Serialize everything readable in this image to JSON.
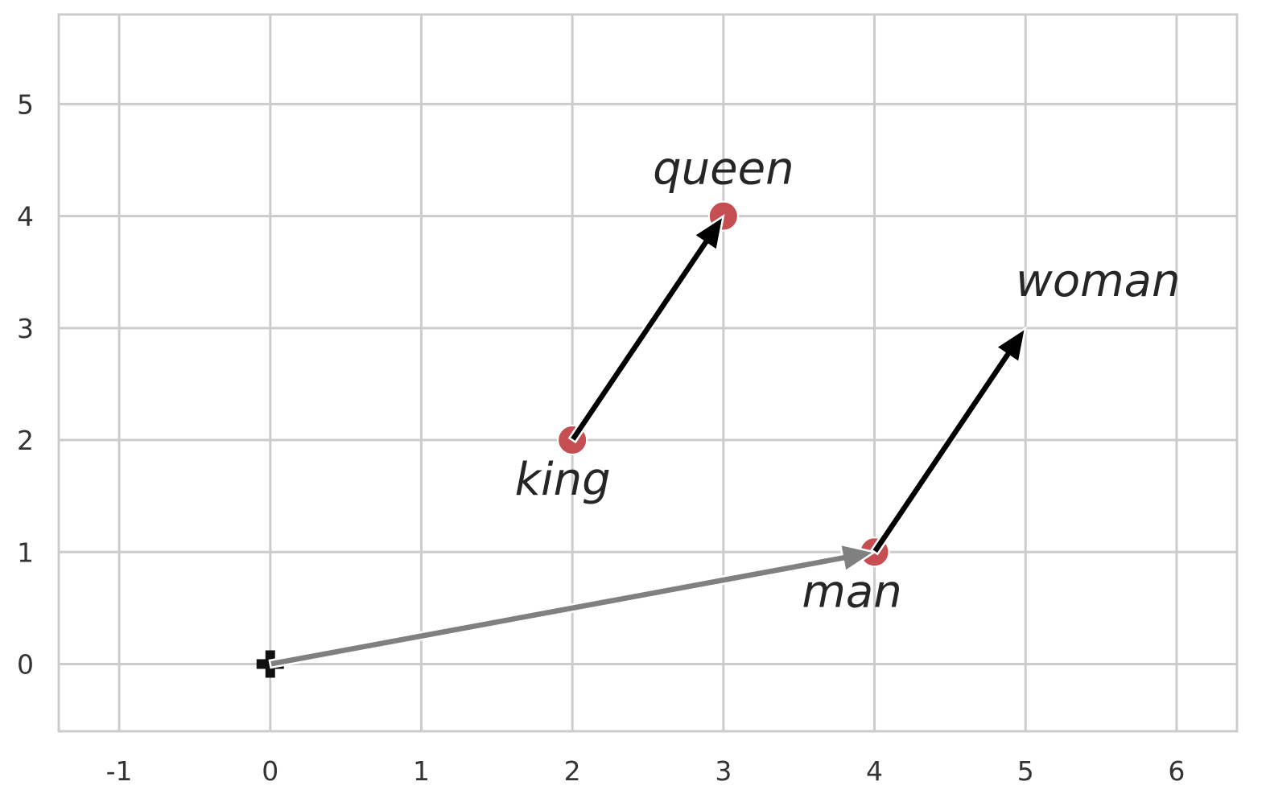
{
  "chart_data": {
    "type": "scatter",
    "title": "",
    "xlabel": "",
    "ylabel": "",
    "xlim": [
      -1.4,
      6.4
    ],
    "ylim": [
      -0.6,
      5.8
    ],
    "xticks": [
      -1,
      0,
      1,
      2,
      3,
      4,
      5,
      6
    ],
    "yticks": [
      0,
      1,
      2,
      3,
      4,
      5
    ],
    "xtick_labels": [
      "-1",
      "0",
      "1",
      "2",
      "3",
      "4",
      "5",
      "6"
    ],
    "ytick_labels": [
      "0",
      "1",
      "2",
      "3",
      "4",
      "5"
    ],
    "grid": true,
    "points": [
      {
        "label": "king",
        "x": 2,
        "y": 2,
        "color": "#c44e52",
        "marker": true,
        "label_pos": "below"
      },
      {
        "label": "queen",
        "x": 3,
        "y": 4,
        "color": "#c44e52",
        "marker": true,
        "label_pos": "above"
      },
      {
        "label": "man",
        "x": 4,
        "y": 1,
        "color": "#c44e52",
        "marker": true,
        "label_pos": "below"
      },
      {
        "label": "woman",
        "x": 5,
        "y": 3,
        "color": "#c44e52",
        "marker": false,
        "label_pos": "above"
      }
    ],
    "origin_marker": {
      "x": 0,
      "y": 0,
      "shape": "plus",
      "color": "#111111"
    },
    "arrows": [
      {
        "from": [
          0,
          0
        ],
        "to": [
          4,
          1
        ],
        "color": "#808080"
      },
      {
        "from": [
          2,
          2
        ],
        "to": [
          3,
          4
        ],
        "color": "#000000"
      },
      {
        "from": [
          4,
          1
        ],
        "to": [
          5,
          3
        ],
        "color": "#000000"
      }
    ]
  }
}
